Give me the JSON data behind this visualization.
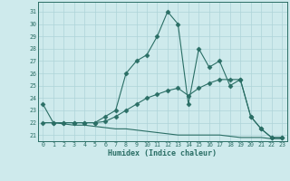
{
  "line1_x": [
    0,
    1,
    2,
    3,
    4,
    5,
    6,
    7,
    8,
    9,
    10,
    11,
    12,
    13,
    14,
    15,
    16,
    17,
    18,
    19,
    20,
    21,
    22,
    23
  ],
  "line1_y": [
    23.5,
    22.0,
    22.0,
    22.0,
    22.0,
    22.0,
    22.5,
    23.0,
    26.0,
    27.0,
    27.5,
    29.0,
    31.0,
    30.0,
    23.5,
    28.0,
    26.5,
    27.0,
    25.0,
    25.5,
    22.5,
    21.5,
    20.8,
    20.8
  ],
  "line2_x": [
    0,
    1,
    2,
    3,
    4,
    5,
    6,
    7,
    8,
    9,
    10,
    11,
    12,
    13,
    14,
    15,
    16,
    17,
    18,
    19,
    20,
    21,
    22,
    23
  ],
  "line2_y": [
    22.0,
    22.0,
    22.0,
    22.0,
    22.0,
    22.0,
    22.1,
    22.5,
    23.0,
    23.5,
    24.0,
    24.3,
    24.6,
    24.8,
    24.2,
    24.8,
    25.2,
    25.5,
    25.5,
    25.5,
    22.5,
    21.5,
    20.8,
    20.8
  ],
  "line3_x": [
    0,
    1,
    2,
    3,
    4,
    5,
    6,
    7,
    8,
    9,
    10,
    11,
    12,
    13,
    14,
    15,
    16,
    17,
    18,
    19,
    20,
    21,
    22,
    23
  ],
  "line3_y": [
    22.0,
    22.0,
    21.9,
    21.8,
    21.8,
    21.7,
    21.6,
    21.5,
    21.5,
    21.4,
    21.3,
    21.2,
    21.1,
    21.0,
    21.0,
    21.0,
    21.0,
    21.0,
    20.9,
    20.8,
    20.8,
    20.8,
    20.7,
    20.7
  ],
  "line_color": "#2a6e65",
  "bg_color": "#ceeaec",
  "grid_color": "#add4d8",
  "ylim": [
    20.5,
    31.8
  ],
  "xlim": [
    -0.5,
    23.5
  ],
  "yticks": [
    21,
    22,
    23,
    24,
    25,
    26,
    27,
    28,
    29,
    30,
    31
  ],
  "xticks": [
    0,
    1,
    2,
    3,
    4,
    5,
    6,
    7,
    8,
    9,
    10,
    11,
    12,
    13,
    14,
    15,
    16,
    17,
    18,
    19,
    20,
    21,
    22,
    23
  ],
  "xlabel": "Humidex (Indice chaleur)",
  "marker": "D",
  "marker_size": 2.5
}
